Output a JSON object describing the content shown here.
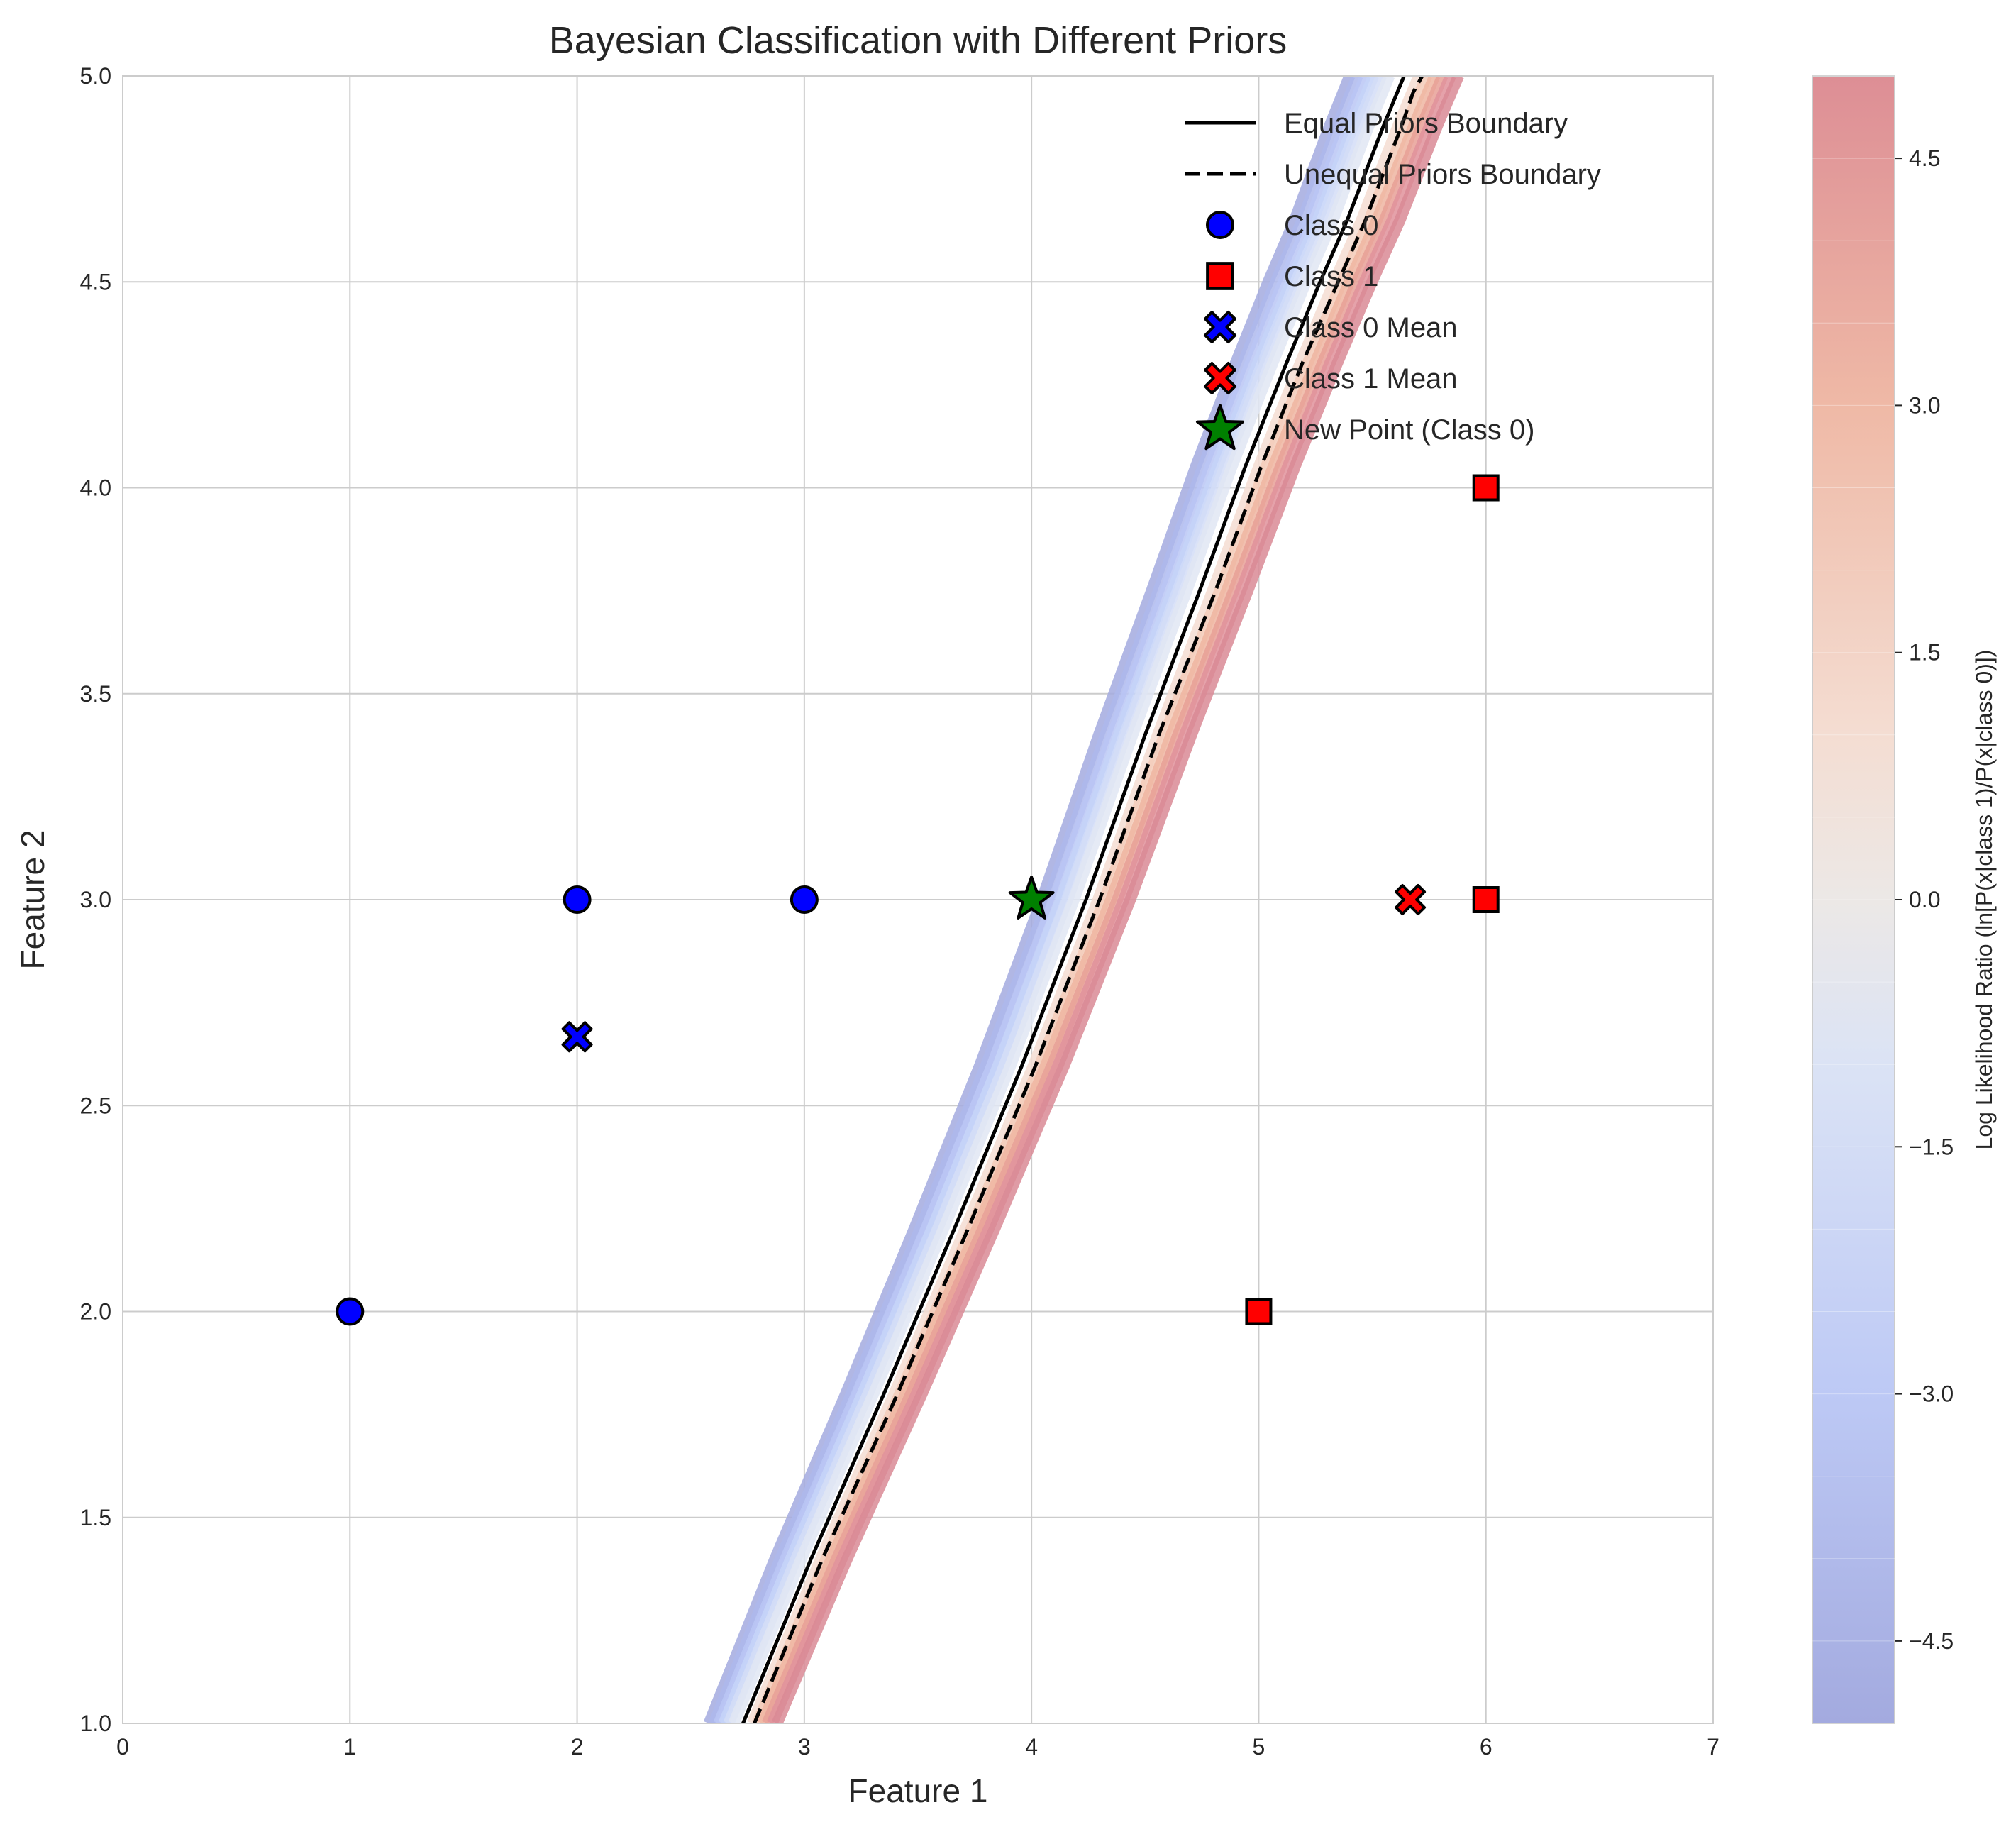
{
  "chart_data": {
    "type": "scatter",
    "title": "Bayesian Classification with Different Priors",
    "xlabel": "Feature 1",
    "ylabel": "Feature 2",
    "xlim": [
      0,
      7
    ],
    "ylim": [
      1.0,
      5.0
    ],
    "x_ticks": [
      "0",
      "1",
      "2",
      "3",
      "4",
      "5",
      "6",
      "7"
    ],
    "y_ticks": [
      "1.0",
      "1.5",
      "2.0",
      "2.5",
      "3.0",
      "3.5",
      "4.0",
      "4.5",
      "5.0"
    ],
    "grid": true,
    "legend_position": "top-right",
    "colorbar": {
      "label": "Log Likelihood Ratio (ln[P(x|class 1)/P(x|class 0)])",
      "range": [
        -5,
        5
      ],
      "ticks": [
        "−4.5",
        "−3.0",
        "−1.5",
        "0.0",
        "1.5",
        "3.0",
        "4.5"
      ],
      "colormap": "coolwarm"
    },
    "series": [
      {
        "name": "Equal Priors Boundary",
        "kind": "line",
        "style": "solid",
        "color": "#000000",
        "x": [
          2.73,
          3.03,
          3.35,
          3.66,
          3.96,
          4.24,
          4.5,
          4.74,
          4.94,
          5.12,
          5.27,
          5.39,
          5.48,
          5.55,
          5.61,
          5.64
        ],
        "y": [
          1.0,
          1.4,
          1.8,
          2.2,
          2.6,
          3.0,
          3.4,
          3.75,
          4.05,
          4.3,
          4.5,
          4.65,
          4.78,
          4.88,
          4.96,
          5.0
        ]
      },
      {
        "name": "Unequal Priors Boundary",
        "kind": "line",
        "style": "dashed",
        "color": "#000000",
        "x": [
          2.78,
          3.08,
          3.41,
          3.72,
          4.02,
          4.3,
          4.56,
          4.81,
          5.01,
          5.19,
          5.35,
          5.47,
          5.56,
          5.63,
          5.68,
          5.72
        ],
        "y": [
          1.0,
          1.4,
          1.8,
          2.2,
          2.6,
          3.0,
          3.4,
          3.75,
          4.05,
          4.3,
          4.5,
          4.65,
          4.78,
          4.88,
          4.96,
          5.0
        ]
      },
      {
        "name": "Class 0",
        "kind": "points",
        "marker": "circle",
        "color": "#0000ff",
        "x": [
          1,
          2,
          3
        ],
        "y": [
          2,
          3,
          3
        ]
      },
      {
        "name": "Class 1",
        "kind": "points",
        "marker": "square",
        "color": "#ff0000",
        "x": [
          5,
          6,
          6
        ],
        "y": [
          2,
          3,
          4
        ]
      },
      {
        "name": "Class 0 Mean",
        "kind": "points",
        "marker": "x",
        "color": "#0000ff",
        "x": [
          2.0
        ],
        "y": [
          2.667
        ]
      },
      {
        "name": "Class 1 Mean",
        "kind": "points",
        "marker": "x",
        "color": "#ff0000",
        "x": [
          5.667
        ],
        "y": [
          3.0
        ]
      },
      {
        "name": "New Point (Class 0)",
        "kind": "points",
        "marker": "star",
        "color": "#008000",
        "x": [
          4
        ],
        "y": [
          3
        ]
      }
    ]
  }
}
